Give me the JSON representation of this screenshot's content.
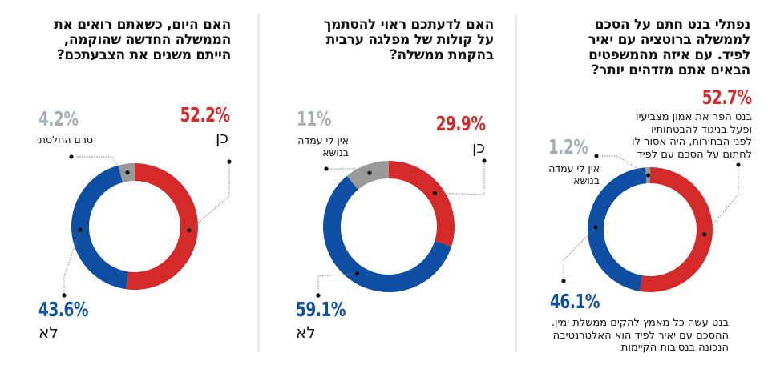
{
  "colors": {
    "yes": "#d42a2a",
    "no": "#0e4fa3",
    "undecided": "#9a9a9a",
    "undecided_text": "#a7aeb5",
    "divider": "#ececec",
    "title": "#111111"
  },
  "chart_data": [
    {
      "type": "pie",
      "variant": "donut",
      "title": "האם היום, כשאתם רואים את הממשלה החדשה שהוקמה, הייתם משנים את הצבעתכם?",
      "title_lines": [
        "האם היום, כשאתם רואים את",
        "הממשלה החדשה שהוקמה,",
        "הייתם משנים את הצבעתכם?"
      ],
      "slices": [
        {
          "key": "yes",
          "label": "כן",
          "value": 52.2,
          "value_text": "52.2%",
          "color": "#d42a2a"
        },
        {
          "key": "no",
          "label": "לא",
          "value": 43.6,
          "value_text": "43.6%",
          "color": "#0e4fa3"
        },
        {
          "key": "undecided",
          "label": "טרם החלטתי",
          "value": 4.2,
          "value_text": "4.2%",
          "color": "#9a9a9a"
        }
      ]
    },
    {
      "type": "pie",
      "variant": "donut",
      "title": "האם לדעתכם ראוי להסתמך על קולות של מפלגה ערבית בהקמת ממשלה?",
      "title_lines": [
        "האם לדעתכם ראוי להסתמך",
        "על קולות של מפלגה ערבית",
        "בהקמת ממשלה?"
      ],
      "slices": [
        {
          "key": "yes",
          "label": "כן",
          "value": 29.9,
          "value_text": "29.9%",
          "color": "#d42a2a"
        },
        {
          "key": "no",
          "label": "לא",
          "value": 59.1,
          "value_text": "59.1%",
          "color": "#0e4fa3"
        },
        {
          "key": "undecided",
          "label": "אין לי עמדה בנושא",
          "label_lines": [
            "אין לי עמדה",
            "בנושא"
          ],
          "value": 11,
          "value_text": "11%",
          "color": "#9a9a9a"
        }
      ]
    },
    {
      "type": "pie",
      "variant": "donut",
      "title": "נפתלי בנט חתם על הסכם לממשלה ברוטציה עם יאיר לפיד. עם איזה מהמשפטים הבאים אתם מזדהים יותר?",
      "title_lines": [
        "נפתלי בנט חתם על הסכם",
        "לממשלה ברוטציה עם יאיר",
        "לפיד. עם איזה מהמשפטים",
        "הבאים אתם מזדהים יותר?"
      ],
      "slices": [
        {
          "key": "yes",
          "label": "בנט הפר את אמון מצביעיו ופעל בניגוד להבטחותיו לפני הבחירות, היה אסור לו לחתום על הסכם עם לפיד",
          "label_lines": [
            "בנט הפר את אמון מצביעיו",
            "ופעל בניגוד להבטחותיו",
            "לפני הבחירות, היה אסור לו",
            "לחתום על הסכם עם לפיד"
          ],
          "value": 52.7,
          "value_text": "52.7%",
          "color": "#d42a2a"
        },
        {
          "key": "no",
          "label": "בנט עשה כל מאמץ להקים ממשלת ימין. ההסכם עם יאיר לפיד הוא האלטרנטיבה הנכונה בנסיבות הקיימות",
          "label_lines": [
            "בנט עשה כל מאמץ להקים ממשלת ימין.",
            "ההסכם עם יאיר לפיד הוא האלטרנטיבה",
            "הנכונה בנסיבות הקיימות"
          ],
          "value": 46.1,
          "value_text": "46.1%",
          "color": "#0e4fa3"
        },
        {
          "key": "undecided",
          "label": "אין לי עמדה בנושא",
          "label_lines": [
            "אין לי עמדה",
            "בנושא"
          ],
          "value": 1.2,
          "value_text": "1.2%",
          "color": "#9a9a9a"
        }
      ]
    }
  ]
}
